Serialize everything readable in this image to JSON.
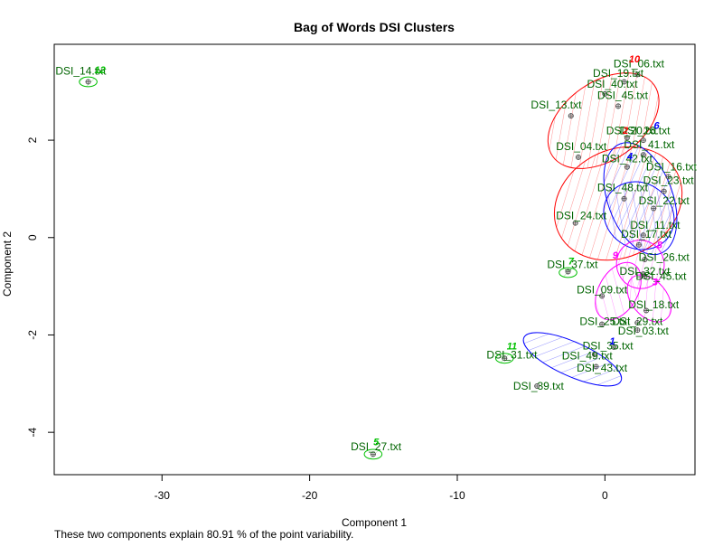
{
  "chart_data": {
    "type": "scatter",
    "title": "Bag of Words DSI Clusters",
    "xlabel": "Component 1",
    "ylabel": "Component 2",
    "xlim": [
      -37.3,
      6.1
    ],
    "ylim": [
      -4.87,
      3.97
    ],
    "x_ticks": [
      -30,
      -20,
      -10,
      0
    ],
    "y_ticks": [
      -4,
      -2,
      0,
      2
    ],
    "note": "These two components explain 80.91 % of the point variability.",
    "colors": {
      "red": "#ff0000",
      "blue": "#0000ff",
      "magenta": "#ff00ff",
      "green": "#00c000",
      "label": "#006400",
      "points": "#555555"
    },
    "points": [
      {
        "label": "DSI_14.txt",
        "x": -35.0,
        "y": 3.2,
        "lx": -35.5,
        "ly": 3.35
      },
      {
        "label": "DSI_06.txt",
        "x": 2.2,
        "y": 3.35,
        "lx": 2.3,
        "ly": 3.5
      },
      {
        "label": "DSI_19.txt",
        "x": 1.3,
        "y": 3.2,
        "lx": 0.9,
        "ly": 3.3
      },
      {
        "label": "DSI_40.txt",
        "x": 0.0,
        "y": 2.95,
        "lx": 0.5,
        "ly": 3.08
      },
      {
        "label": "DSI_45.txt",
        "x": 0.9,
        "y": 2.7,
        "lx": 1.2,
        "ly": 2.85
      },
      {
        "label": "DSI_13.txt",
        "x": -2.3,
        "y": 2.5,
        "lx": -3.3,
        "ly": 2.65
      },
      {
        "label": "DSI_20.txt",
        "x": 1.5,
        "y": 2.05,
        "lx": 1.8,
        "ly": 2.12
      },
      {
        "label": "DSI_26.txt",
        "x": 2.6,
        "y": 2.0,
        "lx": 2.7,
        "ly": 2.12
      },
      {
        "label": "DSI_41.txt",
        "x": 2.6,
        "y": 1.7,
        "lx": 3.0,
        "ly": 1.83
      },
      {
        "label": "DSI_04.txt",
        "x": -1.8,
        "y": 1.65,
        "lx": -1.6,
        "ly": 1.8
      },
      {
        "label": "DSI_42.txt",
        "x": 1.5,
        "y": 1.45,
        "lx": 1.5,
        "ly": 1.55
      },
      {
        "label": "DSI_16.txt",
        "x": 4.3,
        "y": 1.25,
        "lx": 4.5,
        "ly": 1.38
      },
      {
        "label": "DSI_23.txt",
        "x": 4.0,
        "y": 0.95,
        "lx": 4.3,
        "ly": 1.1
      },
      {
        "label": "DSI_48.txt",
        "x": 1.3,
        "y": 0.8,
        "lx": 1.2,
        "ly": 0.95
      },
      {
        "label": "DSI_22.txt",
        "x": 3.3,
        "y": 0.6,
        "lx": 4.0,
        "ly": 0.68
      },
      {
        "label": "DSI_24.txt",
        "x": -2.0,
        "y": 0.3,
        "lx": -1.6,
        "ly": 0.38
      },
      {
        "label": "DSI_11.txt",
        "x": 2.6,
        "y": 0.05,
        "lx": 3.4,
        "ly": 0.18
      },
      {
        "label": "DSI_17.txt",
        "x": 2.3,
        "y": -0.15,
        "lx": 2.8,
        "ly": 0.0
      },
      {
        "label": "DSI_26b.txt",
        "x": 2.7,
        "y": -0.45,
        "lx": 4.0,
        "ly": -0.48
      },
      {
        "label": "DSI_37.txt",
        "x": -2.5,
        "y": -0.7,
        "lx": -2.2,
        "ly": -0.63
      },
      {
        "label": "DSI_32.txt",
        "x": 2.6,
        "y": -0.75,
        "lx": 2.7,
        "ly": -0.77
      },
      {
        "label": "DSI_45b.txt",
        "x": 2.7,
        "y": -0.8,
        "lx": 3.8,
        "ly": -0.87
      },
      {
        "label": "DSI_09.txt",
        "x": -0.2,
        "y": -1.2,
        "lx": -0.2,
        "ly": -1.15
      },
      {
        "label": "DSI_18.txt",
        "x": 2.8,
        "y": -1.5,
        "lx": 3.3,
        "ly": -1.45
      },
      {
        "label": "DSI_25.txt",
        "x": -0.2,
        "y": -1.78,
        "lx": 0.0,
        "ly": -1.8
      },
      {
        "label": "DSI_29.txt",
        "x": 2.2,
        "y": -1.75,
        "lx": 2.2,
        "ly": -1.8
      },
      {
        "label": "DSI_03.txt",
        "x": 2.2,
        "y": -1.9,
        "lx": 2.6,
        "ly": -1.99
      },
      {
        "label": "DSI_35.txt",
        "x": 0.6,
        "y": -2.25,
        "lx": 0.2,
        "ly": -2.3
      },
      {
        "label": "DSI_49.txt",
        "x": -0.7,
        "y": -2.4,
        "lx": -1.2,
        "ly": -2.5
      },
      {
        "label": "DSI_31.txt",
        "x": -6.8,
        "y": -2.48,
        "lx": -6.3,
        "ly": -2.48
      },
      {
        "label": "DSI_43.txt",
        "x": -0.6,
        "y": -2.65,
        "lx": -0.2,
        "ly": -2.75
      },
      {
        "label": "DSI_39.txt",
        "x": -4.6,
        "y": -3.05,
        "lx": -4.5,
        "ly": -3.12
      },
      {
        "label": "DSI_27.txt",
        "x": -15.7,
        "y": -4.45,
        "lx": -15.5,
        "ly": -4.37
      }
    ],
    "clusters": [
      {
        "id": "10",
        "color": "#ff0000",
        "cx": -0.1,
        "cy": 2.4,
        "rx": 4.2,
        "ry": 0.8,
        "rot": -35,
        "lx": 2.0,
        "ly": 3.6
      },
      {
        "id": "2",
        "color": "#ff0000",
        "cx": 0.9,
        "cy": 0.7,
        "rx": 4.5,
        "ry": 1.1,
        "rot": -28,
        "lx": 1.4,
        "ly": 2.13
      },
      {
        "id": "6",
        "color": "#0000ff",
        "cx": 2.4,
        "cy": 0.8,
        "rx": 2.2,
        "ry": 1.2,
        "rot": -20,
        "lx": 3.5,
        "ly": 2.23
      },
      {
        "id": "4",
        "color": "#0000ff",
        "cx": 2.3,
        "cy": 0.45,
        "rx": 2.2,
        "ry": 0.75,
        "rot": -55,
        "lx": 1.7,
        "ly": 1.6
      },
      {
        "id": "8",
        "color": "#ff00ff",
        "cx": 2.4,
        "cy": -0.55,
        "rx": 1.6,
        "ry": 0.5,
        "rot": -30,
        "lx": 3.7,
        "ly": -0.22
      },
      {
        "id": "9",
        "color": "#ff00ff",
        "cx": 0.9,
        "cy": -1.1,
        "rx": 2.1,
        "ry": 0.4,
        "rot": -60,
        "lx": 0.7,
        "ly": -0.43
      },
      {
        "id": "3",
        "color": "#ff00ff",
        "cx": 3.0,
        "cy": -1.25,
        "rx": 1.2,
        "ry": 0.55,
        "rot": -40,
        "lx": 3.4,
        "ly": -0.98
      },
      {
        "id": "1",
        "color": "#0000ff",
        "cx": -2.2,
        "cy": -2.5,
        "rx": 3.6,
        "ry": 0.35,
        "rot": 24,
        "lx": 0.5,
        "ly": -2.2
      },
      {
        "id": "7",
        "color": "#00c000",
        "cx": -2.5,
        "cy": -0.72,
        "rx": 0.6,
        "ry": 0.1,
        "rot": 0,
        "lx": -2.3,
        "ly": -0.55
      },
      {
        "id": "11",
        "color": "#00c000",
        "cx": -6.8,
        "cy": -2.48,
        "rx": 0.6,
        "ry": 0.1,
        "rot": 0,
        "lx": -6.3,
        "ly": -2.3
      },
      {
        "id": "12",
        "color": "#00c000",
        "cx": -35.0,
        "cy": 3.2,
        "rx": 0.6,
        "ry": 0.1,
        "rot": 0,
        "lx": -34.2,
        "ly": 3.38
      },
      {
        "id": "5",
        "color": "#00c000",
        "cx": -15.7,
        "cy": -4.45,
        "rx": 0.6,
        "ry": 0.1,
        "rot": 0,
        "lx": -15.5,
        "ly": -4.27
      }
    ]
  }
}
